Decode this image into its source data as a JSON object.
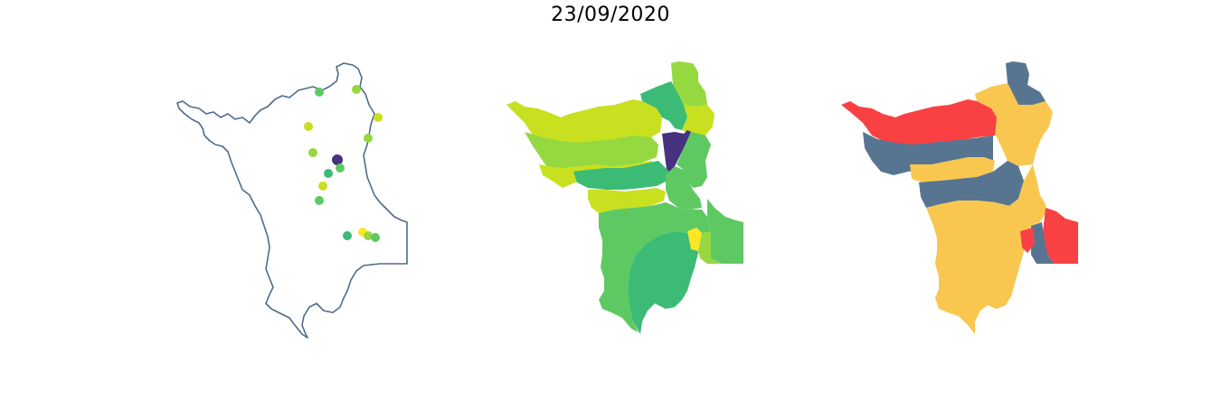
{
  "title": "23/09/2020",
  "colors": {
    "outline": "#4f6b8a",
    "viridis_dark": "#46327e",
    "viridis_teal": "#3bbb75",
    "viridis_green": "#5ec962",
    "viridis_lime": "#95d840",
    "viridis_yellowgreen": "#c8e020",
    "viridis_yellow": "#fde725",
    "cat_red": "#f94144",
    "cat_slate": "#577590",
    "cat_gold": "#f9c74f"
  },
  "panels": [
    {
      "id": "points",
      "kind": "point-map"
    },
    {
      "id": "choropleth-continuous",
      "kind": "choropleth"
    },
    {
      "id": "choropleth-categorical",
      "kind": "choropleth"
    }
  ]
}
